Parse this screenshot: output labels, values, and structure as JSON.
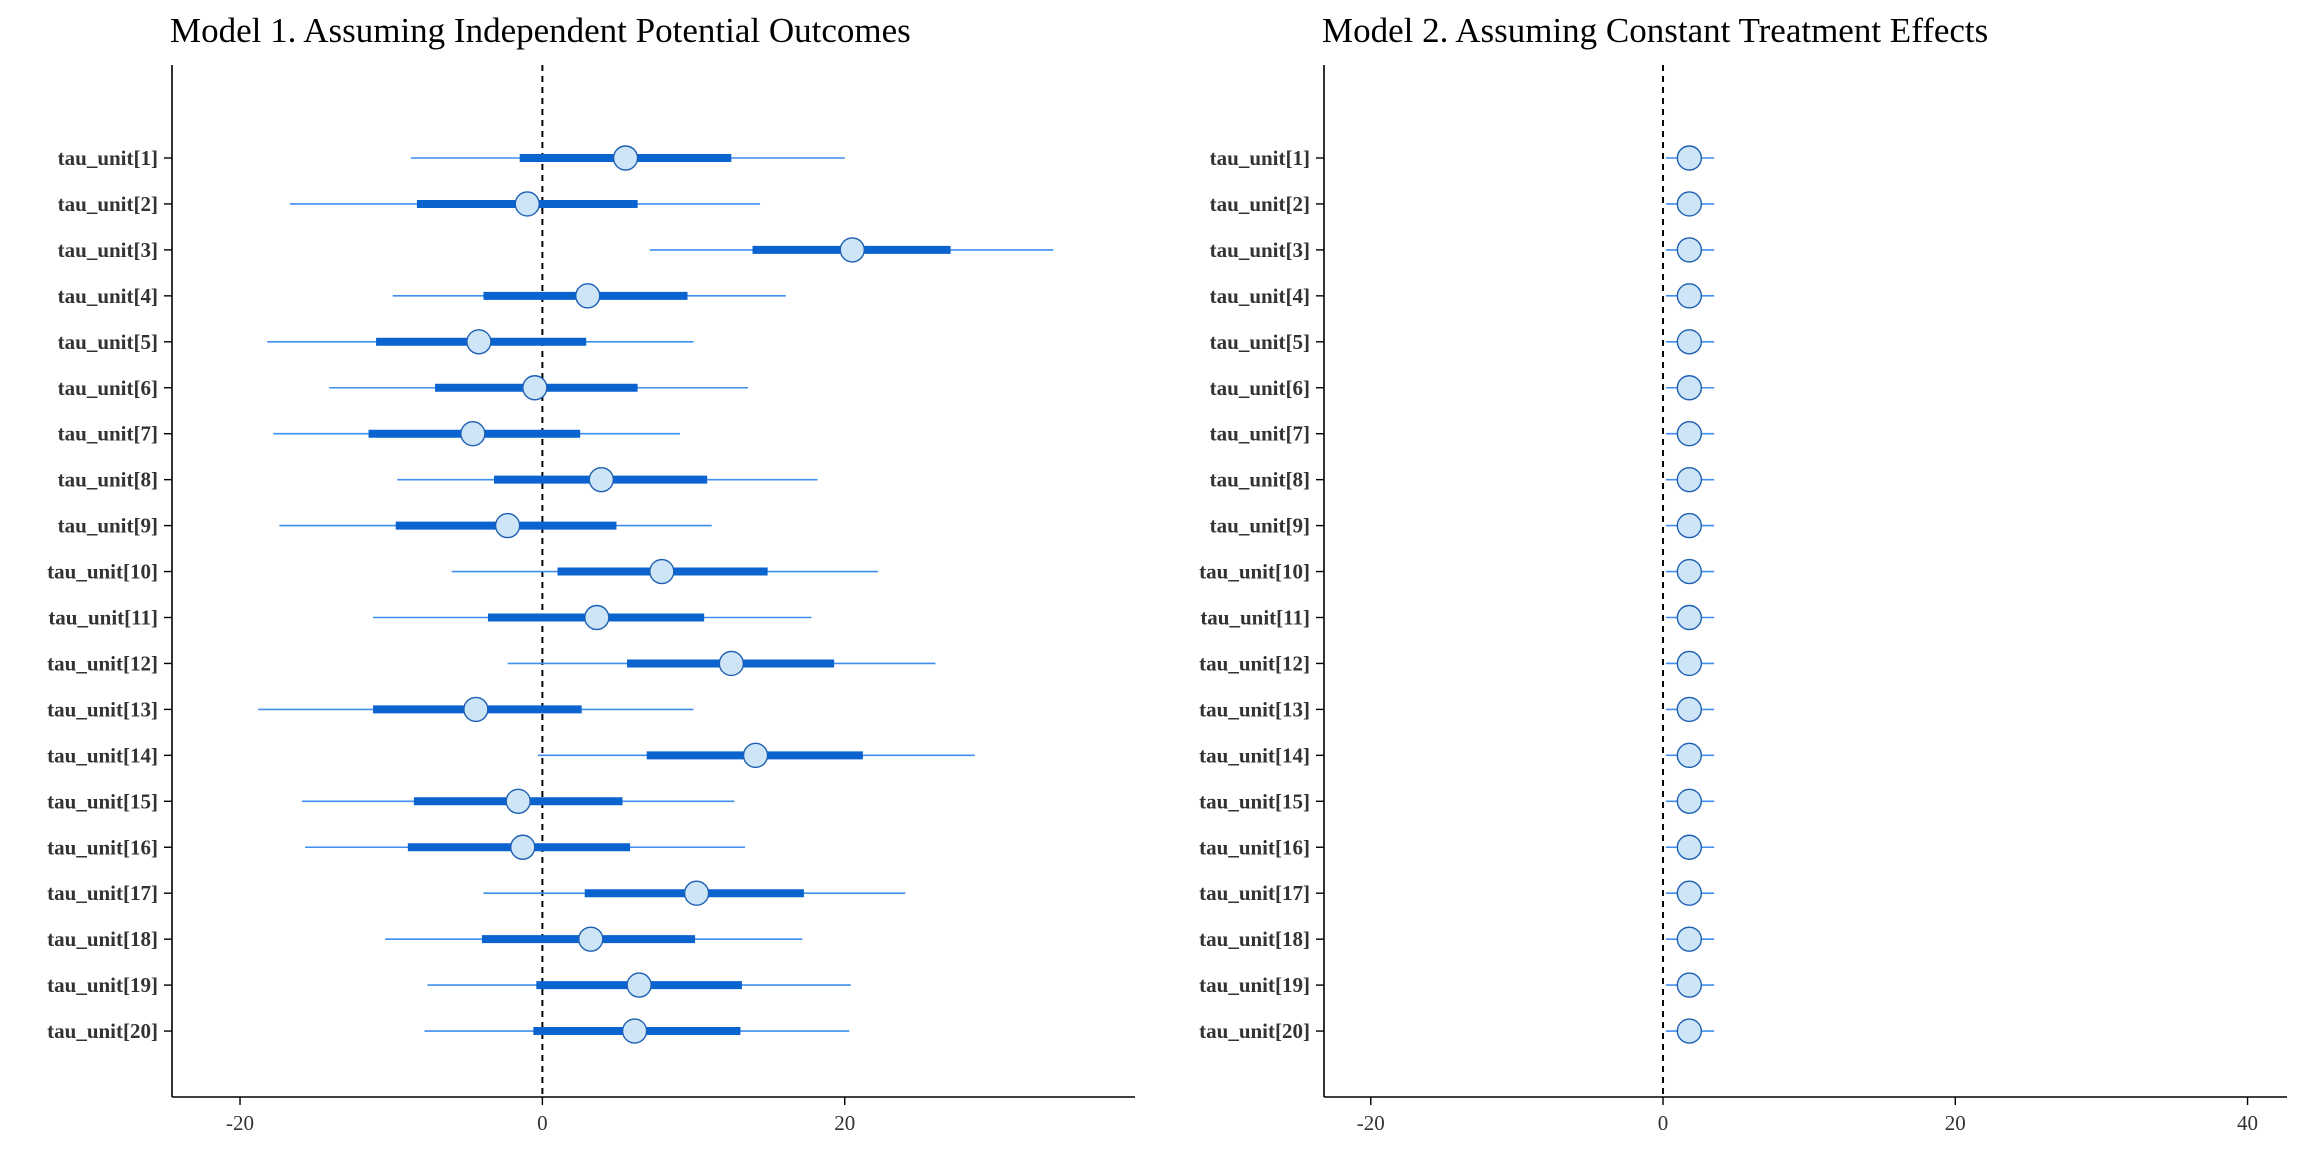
{
  "chart_data": [
    {
      "type": "interval",
      "title": "Model 1. Assuming Independent Potential Outcomes",
      "parameters": [
        "tau_unit[1]",
        "tau_unit[2]",
        "tau_unit[3]",
        "tau_unit[4]",
        "tau_unit[5]",
        "tau_unit[6]",
        "tau_unit[7]",
        "tau_unit[8]",
        "tau_unit[9]",
        "tau_unit[10]",
        "tau_unit[11]",
        "tau_unit[12]",
        "tau_unit[13]",
        "tau_unit[14]",
        "tau_unit[15]",
        "tau_unit[16]",
        "tau_unit[17]",
        "tau_unit[18]",
        "tau_unit[19]",
        "tau_unit[20]"
      ],
      "median": [
        5.5,
        -1.0,
        20.5,
        3.0,
        -4.2,
        -0.5,
        -4.6,
        3.9,
        -2.3,
        7.9,
        3.6,
        12.5,
        -4.4,
        14.1,
        -1.6,
        -1.3,
        10.2,
        3.2,
        6.4,
        6.1
      ],
      "inner": [
        [
          -1.5,
          12.5
        ],
        [
          -8.3,
          6.3
        ],
        [
          13.9,
          27.0
        ],
        [
          -3.9,
          9.6
        ],
        [
          -11.0,
          2.9
        ],
        [
          -7.1,
          6.3
        ],
        [
          -11.5,
          2.5
        ],
        [
          -3.2,
          10.9
        ],
        [
          -9.7,
          4.9
        ],
        [
          1.0,
          14.9
        ],
        [
          -3.6,
          10.7
        ],
        [
          5.6,
          19.3
        ],
        [
          -11.2,
          2.6
        ],
        [
          6.9,
          21.2
        ],
        [
          -8.5,
          5.3
        ],
        [
          -8.9,
          5.8
        ],
        [
          2.8,
          17.3
        ],
        [
          -4.0,
          10.1
        ],
        [
          -0.4,
          13.2
        ],
        [
          -0.6,
          13.1
        ]
      ],
      "outer": [
        [
          -8.7,
          20.0
        ],
        [
          -16.7,
          14.4
        ],
        [
          7.1,
          33.8
        ],
        [
          -9.9,
          16.1
        ],
        [
          -18.2,
          10.0
        ],
        [
          -14.1,
          13.6
        ],
        [
          -17.8,
          9.1
        ],
        [
          -9.6,
          18.2
        ],
        [
          -17.4,
          11.2
        ],
        [
          -6.0,
          22.2
        ],
        [
          -11.2,
          17.8
        ],
        [
          -2.3,
          26.0
        ],
        [
          -18.8,
          10.0
        ],
        [
          -0.3,
          28.6
        ],
        [
          -15.9,
          12.7
        ],
        [
          -15.7,
          13.4
        ],
        [
          -3.9,
          24.0
        ],
        [
          -10.4,
          17.2
        ],
        [
          -7.6,
          20.4
        ],
        [
          -7.8,
          20.3
        ]
      ],
      "xlim": [
        -24.5,
        39.2
      ],
      "xticks": [
        -20,
        0,
        20
      ],
      "vline": 0
    },
    {
      "type": "interval",
      "title": "Model 2. Assuming Constant Treatment Effects",
      "parameters": [
        "tau_unit[1]",
        "tau_unit[2]",
        "tau_unit[3]",
        "tau_unit[4]",
        "tau_unit[5]",
        "tau_unit[6]",
        "tau_unit[7]",
        "tau_unit[8]",
        "tau_unit[9]",
        "tau_unit[10]",
        "tau_unit[11]",
        "tau_unit[12]",
        "tau_unit[13]",
        "tau_unit[14]",
        "tau_unit[15]",
        "tau_unit[16]",
        "tau_unit[17]",
        "tau_unit[18]",
        "tau_unit[19]",
        "tau_unit[20]"
      ],
      "median": [
        1.8,
        1.8,
        1.8,
        1.8,
        1.8,
        1.8,
        1.8,
        1.8,
        1.8,
        1.8,
        1.8,
        1.8,
        1.8,
        1.8,
        1.8,
        1.8,
        1.8,
        1.8,
        1.8,
        1.8
      ],
      "inner": [
        [
          1.1,
          2.5
        ],
        [
          1.1,
          2.5
        ],
        [
          1.1,
          2.5
        ],
        [
          1.1,
          2.5
        ],
        [
          1.1,
          2.5
        ],
        [
          1.1,
          2.5
        ],
        [
          1.1,
          2.5
        ],
        [
          1.1,
          2.5
        ],
        [
          1.1,
          2.5
        ],
        [
          1.1,
          2.5
        ],
        [
          1.1,
          2.5
        ],
        [
          1.1,
          2.5
        ],
        [
          1.1,
          2.5
        ],
        [
          1.1,
          2.5
        ],
        [
          1.1,
          2.5
        ],
        [
          1.1,
          2.5
        ],
        [
          1.1,
          2.5
        ],
        [
          1.1,
          2.5
        ],
        [
          1.1,
          2.5
        ],
        [
          1.1,
          2.5
        ]
      ],
      "outer": [
        [
          0.2,
          3.5
        ],
        [
          0.2,
          3.5
        ],
        [
          0.2,
          3.5
        ],
        [
          0.2,
          3.5
        ],
        [
          0.2,
          3.5
        ],
        [
          0.2,
          3.5
        ],
        [
          0.2,
          3.5
        ],
        [
          0.2,
          3.5
        ],
        [
          0.2,
          3.5
        ],
        [
          0.2,
          3.5
        ],
        [
          0.2,
          3.5
        ],
        [
          0.2,
          3.5
        ],
        [
          0.2,
          3.5
        ],
        [
          0.2,
          3.5
        ],
        [
          0.2,
          3.5
        ],
        [
          0.2,
          3.5
        ],
        [
          0.2,
          3.5
        ],
        [
          0.2,
          3.5
        ],
        [
          0.2,
          3.5
        ],
        [
          0.2,
          3.5
        ]
      ],
      "xlim": [
        -23.2,
        42.7
      ],
      "xticks": [
        -20,
        0,
        20,
        40
      ],
      "vline": 0
    }
  ],
  "colors": {
    "outer_line": "#3f8ef0",
    "inner_line": "#0a63cf",
    "point_fill": "#cde5f7",
    "point_stroke": "#1d5fb3",
    "axis": "#000000",
    "text": "#333333"
  }
}
